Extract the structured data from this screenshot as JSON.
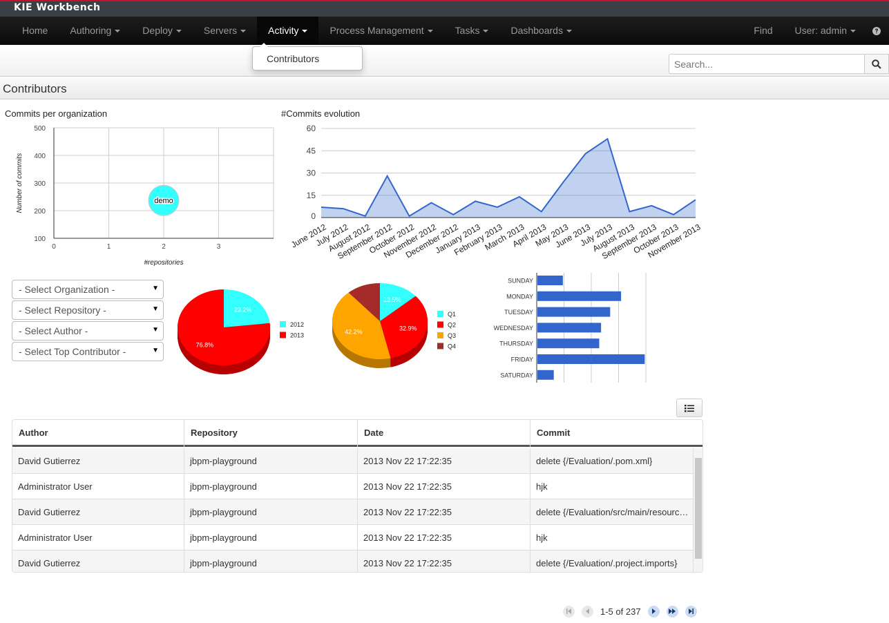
{
  "app": {
    "title": "KIE Workbench"
  },
  "nav": {
    "items": [
      {
        "label": "Home",
        "caret": false
      },
      {
        "label": "Authoring",
        "caret": true
      },
      {
        "label": "Deploy",
        "caret": true
      },
      {
        "label": "Servers",
        "caret": true
      },
      {
        "label": "Activity",
        "caret": true,
        "active": true
      },
      {
        "label": "Process Management",
        "caret": true
      },
      {
        "label": "Tasks",
        "caret": true
      },
      {
        "label": "Dashboards",
        "caret": true
      }
    ],
    "find": "Find",
    "user": "User: admin",
    "help_icon": "question-circle-icon"
  },
  "activity_menu": {
    "items": [
      "Contributors"
    ]
  },
  "search": {
    "placeholder": "Search...",
    "icon": "search-icon"
  },
  "page": {
    "title": "Contributors"
  },
  "filters": [
    "- Select Organization -",
    "- Select Repository -",
    "- Select Author -",
    "- Select Top Contributor -"
  ],
  "colors": {
    "line": "#3366cc",
    "cyan": "#33ffff",
    "red": "#ff0000",
    "orange": "#ffa500",
    "brown": "#a52a2a",
    "bar": "#3366cc"
  },
  "chart_data": [
    {
      "type": "scatter",
      "title": "Commits per organization",
      "xlabel": "#repositories",
      "ylabel": "Number of commits",
      "xlim": [
        0,
        4
      ],
      "ylim": [
        100,
        500
      ],
      "xticks": [
        "0",
        "1",
        "2",
        "3"
      ],
      "yticks": [
        "100",
        "200",
        "300",
        "400",
        "500"
      ],
      "grid": true,
      "points": [
        {
          "label": "demo",
          "x": 2,
          "y": 237
        }
      ]
    },
    {
      "type": "area",
      "title": "#Commits evolution",
      "ylim": [
        0,
        60
      ],
      "yticks": [
        "0",
        "15",
        "30",
        "45",
        "60"
      ],
      "grid": true,
      "categories": [
        "June 2012",
        "July 2012",
        "August 2012",
        "September 2012",
        "October 2012",
        "November 2012",
        "December 2012",
        "January 2013",
        "February 2013",
        "March 2013",
        "April 2013",
        "May 2013",
        "June 2013",
        "July 2013",
        "August 2013",
        "September 2013",
        "October 2013",
        "November 2013"
      ],
      "values": [
        7,
        6,
        1,
        28,
        1,
        10,
        2,
        11,
        7,
        14,
        4,
        24,
        43,
        53,
        4,
        8,
        2,
        12
      ]
    },
    {
      "type": "pie",
      "legend": "right",
      "slices": [
        {
          "name": "2012",
          "value": 23.2,
          "label": "23.2%",
          "color": "#33ffff"
        },
        {
          "name": "2013",
          "value": 76.8,
          "label": "76.8%",
          "color": "#ff0000"
        }
      ]
    },
    {
      "type": "pie",
      "legend": "right",
      "slices": [
        {
          "name": "Q1",
          "value": 13.5,
          "label": "13.5%",
          "color": "#33ffff"
        },
        {
          "name": "Q2",
          "value": 32.9,
          "label": "32.9%",
          "color": "#ff0000"
        },
        {
          "name": "Q3",
          "value": 42.2,
          "label": "42.2%",
          "color": "#ffa500"
        },
        {
          "name": "Q4",
          "value": 11.4,
          "label": "",
          "color": "#a52a2a"
        }
      ]
    },
    {
      "type": "bar",
      "orientation": "horizontal",
      "xlim": [
        0,
        60
      ],
      "grid": true,
      "categories": [
        "SUNDAY",
        "MONDAY",
        "TUESDAY",
        "WEDNESDAY",
        "THURSDAY",
        "FRIDAY",
        "SATURDAY"
      ],
      "values": [
        14,
        46,
        40,
        35,
        34,
        59,
        9
      ]
    }
  ],
  "table": {
    "columns": [
      "Author",
      "Repository",
      "Date",
      "Commit"
    ],
    "rows": [
      [
        "David Gutierrez",
        "jbpm-playground",
        "2013 Nov 22 17:22:35",
        "delete {/Evaluation/.pom.xml}"
      ],
      [
        "Administrator User",
        "jbpm-playground",
        "2013 Nov 22 17:22:35",
        "hjk"
      ],
      [
        "David Gutierrez",
        "jbpm-playground",
        "2013 Nov 22 17:22:35",
        "delete {/Evaluation/src/main/resources/...}"
      ],
      [
        "Administrator User",
        "jbpm-playground",
        "2013 Nov 22 17:22:35",
        "hjk"
      ],
      [
        "David Gutierrez",
        "jbpm-playground",
        "2013 Nov 22 17:22:35",
        "delete {/Evaluation/.project.imports}"
      ]
    ]
  },
  "pager": {
    "text": "1-5 of 237"
  }
}
